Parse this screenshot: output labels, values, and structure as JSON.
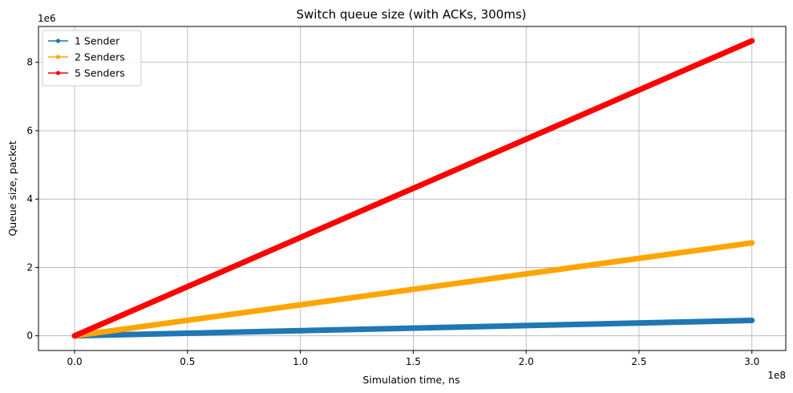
{
  "chart_data": {
    "type": "line",
    "title": "Switch queue size (with ACKs, 300ms)",
    "xlabel": "Simulation time, ns",
    "ylabel": "Queue size, packet",
    "x_offset_label": "1e8",
    "y_offset_label": "1e6",
    "xlim": [
      -16000000,
      315000000
    ],
    "ylim": [
      -430000,
      9050000
    ],
    "x_ticks": [
      0,
      50000000,
      100000000,
      150000000,
      200000000,
      250000000,
      300000000
    ],
    "x_tick_labels": [
      "0.0",
      "0.5",
      "1.0",
      "1.5",
      "2.0",
      "2.5",
      "3.0"
    ],
    "y_ticks": [
      0,
      2000000,
      4000000,
      6000000,
      8000000
    ],
    "y_tick_labels": [
      "0",
      "2",
      "4",
      "6",
      "8"
    ],
    "grid": true,
    "legend_position": "top-left",
    "series": [
      {
        "name": "1 Sender",
        "color": "#1f77b4",
        "x": [
          0,
          300000000
        ],
        "y": [
          0,
          450000
        ]
      },
      {
        "name": "2 Senders",
        "color": "#ffa500",
        "x": [
          0,
          300000000
        ],
        "y": [
          0,
          2720000
        ]
      },
      {
        "name": "5 Senders",
        "color": "#ff0000",
        "x": [
          0,
          300000000
        ],
        "y": [
          0,
          8630000
        ]
      }
    ]
  }
}
